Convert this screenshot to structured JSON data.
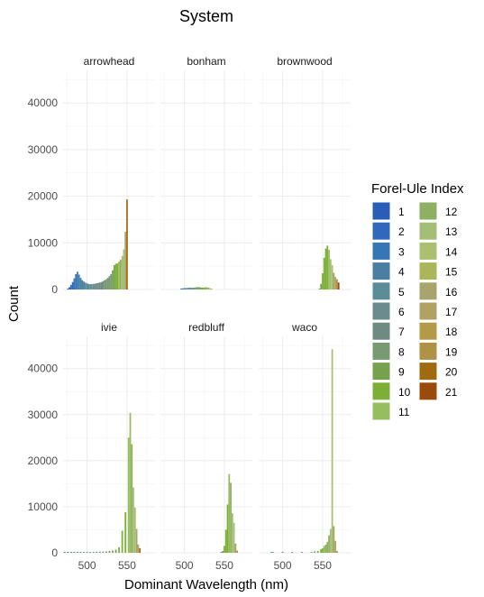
{
  "chart_data": {
    "type": "bar",
    "title": "System",
    "xlabel": "Dominant Wavelength (nm)",
    "ylabel": "Count",
    "xlim": [
      470,
      585
    ],
    "ylim": [
      0,
      47000
    ],
    "x_ticks": [
      "500",
      "550"
    ],
    "y_ticks": [
      "0",
      "10000",
      "20000",
      "30000",
      "40000"
    ],
    "grid": true,
    "legend": {
      "title": "Forel-Ule Index",
      "position": "right",
      "entries": [
        {
          "label": "1",
          "color": "#2A5DB8"
        },
        {
          "label": "2",
          "color": "#3068BD"
        },
        {
          "label": "3",
          "color": "#3776B6"
        },
        {
          "label": "4",
          "color": "#4A7EA3"
        },
        {
          "label": "5",
          "color": "#5A8D97"
        },
        {
          "label": "6",
          "color": "#6A8C8F"
        },
        {
          "label": "7",
          "color": "#6E8A82"
        },
        {
          "label": "8",
          "color": "#789A72"
        },
        {
          "label": "9",
          "color": "#76A24E"
        },
        {
          "label": "10",
          "color": "#7DAF37"
        },
        {
          "label": "11",
          "color": "#95BE5E"
        },
        {
          "label": "12",
          "color": "#8DB062"
        },
        {
          "label": "13",
          "color": "#A4BE78"
        },
        {
          "label": "14",
          "color": "#A8C070"
        },
        {
          "label": "15",
          "color": "#ABB65B"
        },
        {
          "label": "16",
          "color": "#A7A46C"
        },
        {
          "label": "17",
          "color": "#B0A262"
        },
        {
          "label": "18",
          "color": "#B29A49"
        },
        {
          "label": "19",
          "color": "#B09246"
        },
        {
          "label": "20",
          "color": "#A06B10"
        },
        {
          "label": "21",
          "color": "#9A4B0B"
        }
      ]
    },
    "panels": [
      {
        "name": "arrowhead",
        "bars": [
          [
            476,
            200,
            1
          ],
          [
            478,
            500,
            1
          ],
          [
            480,
            1000,
            2
          ],
          [
            482,
            1600,
            2
          ],
          [
            484,
            2400,
            3
          ],
          [
            486,
            3300,
            3
          ],
          [
            488,
            3800,
            3
          ],
          [
            490,
            3200,
            4
          ],
          [
            492,
            2500,
            4
          ],
          [
            494,
            2000,
            4
          ],
          [
            496,
            1700,
            4
          ],
          [
            498,
            1450,
            5
          ],
          [
            500,
            1300,
            5
          ],
          [
            502,
            1200,
            5
          ],
          [
            504,
            1150,
            5
          ],
          [
            506,
            1150,
            6
          ],
          [
            508,
            1200,
            6
          ],
          [
            510,
            1250,
            6
          ],
          [
            512,
            1350,
            6
          ],
          [
            514,
            1400,
            7
          ],
          [
            516,
            1500,
            7
          ],
          [
            518,
            1600,
            7
          ],
          [
            520,
            1800,
            7
          ],
          [
            522,
            2000,
            8
          ],
          [
            524,
            2200,
            8
          ],
          [
            526,
            2500,
            8
          ],
          [
            528,
            2900,
            8
          ],
          [
            530,
            3300,
            8
          ],
          [
            532,
            4100,
            9
          ],
          [
            534,
            5200,
            9
          ],
          [
            536,
            5500,
            10
          ],
          [
            538,
            5600,
            10
          ],
          [
            540,
            6000,
            11
          ],
          [
            542,
            6400,
            12
          ],
          [
            544,
            7200,
            13
          ],
          [
            546,
            8600,
            14
          ],
          [
            548,
            12400,
            16
          ],
          [
            550,
            19300,
            20
          ]
        ]
      },
      {
        "name": "bonham",
        "bars": [
          [
            496,
            200,
            3
          ],
          [
            498,
            250,
            4
          ],
          [
            500,
            300,
            4
          ],
          [
            502,
            300,
            5
          ],
          [
            504,
            350,
            5
          ],
          [
            506,
            400,
            6
          ],
          [
            508,
            400,
            6
          ],
          [
            510,
            350,
            7
          ],
          [
            512,
            400,
            7
          ],
          [
            514,
            450,
            8
          ],
          [
            516,
            500,
            8
          ],
          [
            518,
            500,
            9
          ],
          [
            520,
            450,
            9
          ],
          [
            522,
            400,
            9
          ],
          [
            524,
            400,
            10
          ],
          [
            526,
            450,
            10
          ],
          [
            528,
            500,
            11
          ],
          [
            530,
            400,
            12
          ],
          [
            532,
            300,
            13
          ],
          [
            534,
            200,
            14
          ]
        ]
      },
      {
        "name": "brownwood",
        "bars": [
          [
            546,
            200,
            8
          ],
          [
            548,
            1200,
            9
          ],
          [
            550,
            3500,
            10
          ],
          [
            552,
            6800,
            10
          ],
          [
            554,
            8800,
            10
          ],
          [
            556,
            9400,
            10
          ],
          [
            558,
            8500,
            11
          ],
          [
            560,
            6500,
            13
          ],
          [
            562,
            5200,
            14
          ],
          [
            564,
            3600,
            16
          ],
          [
            566,
            2700,
            17
          ],
          [
            568,
            2200,
            19
          ],
          [
            570,
            1500,
            21
          ]
        ]
      },
      {
        "name": "ivie",
        "bars": [
          [
            472,
            200,
            3
          ],
          [
            476,
            200,
            3
          ],
          [
            480,
            200,
            4
          ],
          [
            484,
            200,
            4
          ],
          [
            488,
            200,
            4
          ],
          [
            492,
            200,
            5
          ],
          [
            496,
            200,
            5
          ],
          [
            500,
            200,
            5
          ],
          [
            504,
            200,
            6
          ],
          [
            508,
            200,
            6
          ],
          [
            512,
            250,
            6
          ],
          [
            516,
            250,
            7
          ],
          [
            520,
            250,
            7
          ],
          [
            524,
            300,
            8
          ],
          [
            528,
            400,
            8
          ],
          [
            532,
            500,
            9
          ],
          [
            536,
            700,
            9
          ],
          [
            540,
            1200,
            10
          ],
          [
            544,
            4800,
            10
          ],
          [
            548,
            8800,
            10
          ],
          [
            552,
            25000,
            11
          ],
          [
            554,
            30400,
            11
          ],
          [
            556,
            23600,
            12
          ],
          [
            558,
            14200,
            13
          ],
          [
            560,
            9800,
            14
          ],
          [
            562,
            5200,
            16
          ],
          [
            564,
            1800,
            17
          ],
          [
            566,
            1000,
            20
          ]
        ]
      },
      {
        "name": "redbluff",
        "bars": [
          [
            546,
            200,
            8
          ],
          [
            548,
            400,
            9
          ],
          [
            550,
            1500,
            10
          ],
          [
            552,
            5000,
            10
          ],
          [
            554,
            10500,
            10
          ],
          [
            556,
            17100,
            11
          ],
          [
            558,
            15200,
            12
          ],
          [
            560,
            8600,
            13
          ],
          [
            562,
            6500,
            14
          ],
          [
            564,
            2000,
            16
          ],
          [
            566,
            500,
            18
          ]
        ]
      },
      {
        "name": "waco",
        "bars": [
          [
            486,
            150,
            4
          ],
          [
            488,
            150,
            4
          ],
          [
            500,
            200,
            5
          ],
          [
            512,
            200,
            6
          ],
          [
            524,
            200,
            7
          ],
          [
            536,
            200,
            8
          ],
          [
            540,
            300,
            9
          ],
          [
            544,
            400,
            9
          ],
          [
            548,
            800,
            10
          ],
          [
            550,
            1000,
            10
          ],
          [
            552,
            1500,
            11
          ],
          [
            554,
            1800,
            12
          ],
          [
            556,
            2400,
            12
          ],
          [
            558,
            3800,
            12
          ],
          [
            560,
            5200,
            13
          ],
          [
            562,
            44200,
            14
          ],
          [
            564,
            5800,
            16
          ],
          [
            566,
            2600,
            17
          ],
          [
            568,
            400,
            19
          ]
        ]
      }
    ]
  }
}
